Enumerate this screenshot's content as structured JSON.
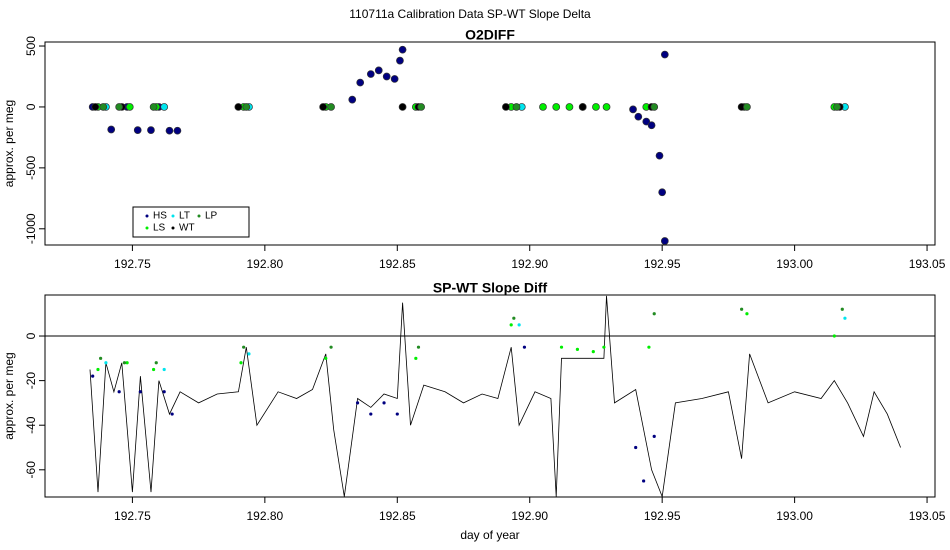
{
  "title": "110711a   Calibration Data SP-WT Slope Delta",
  "chart_data": [
    {
      "type": "scatter",
      "title": "O2DIFF",
      "y_label": "approx. per meg",
      "marker": "circle",
      "legend": "bottom-left",
      "xlim": [
        192.717,
        193.053
      ],
      "xticks": [
        {
          "value": 192.75,
          "label": "192.75"
        },
        {
          "value": 192.8,
          "label": "192.80"
        },
        {
          "value": 192.85,
          "label": "192.85"
        },
        {
          "value": 192.9,
          "label": "192.90"
        },
        {
          "value": 192.95,
          "label": "192.95"
        },
        {
          "value": 193,
          "label": "193.00"
        },
        {
          "value": 193.05,
          "label": "193.05"
        }
      ],
      "ylim": [
        -1133,
        533
      ],
      "yticks": [
        500,
        0,
        -500,
        -1000
      ],
      "series": [
        {
          "name": "HS",
          "color": "#000080",
          "mode": "points",
          "x": [
            192.735,
            192.742,
            192.748,
            192.752,
            192.757,
            192.76,
            192.764,
            192.767,
            192.833,
            192.836,
            192.84,
            192.843,
            192.846,
            192.849,
            192.851,
            192.852,
            192.939,
            192.941,
            192.944,
            192.946,
            192.949,
            192.95,
            192.951,
            192.951
          ],
          "values": [
            0,
            -185,
            0,
            -190,
            -190,
            0,
            -195,
            -195,
            60,
            200,
            270,
            300,
            250,
            230,
            380,
            470,
            -20,
            -80,
            -120,
            -150,
            -400,
            -700,
            430,
            -1100
          ]
        },
        {
          "name": "LS",
          "color": "#00ee00",
          "mode": "points",
          "x": [
            192.737,
            192.749,
            192.759,
            192.792,
            192.823,
            192.857,
            192.893,
            192.905,
            192.91,
            192.915,
            192.92,
            192.925,
            192.929,
            192.944,
            192.981,
            193.015
          ],
          "values": [
            0,
            0,
            0,
            0,
            0,
            0,
            0,
            0,
            0,
            0,
            0,
            0,
            0,
            0,
            0,
            0
          ]
        },
        {
          "name": "LT",
          "color": "#00e5ee",
          "mode": "points",
          "x": [
            192.74,
            192.762,
            192.794,
            192.897,
            193.019
          ],
          "values": [
            0,
            0,
            0,
            0,
            0
          ]
        },
        {
          "name": "WT",
          "color": "#000000",
          "mode": "points",
          "x": [
            192.736,
            192.746,
            192.79,
            192.822,
            192.852,
            192.858,
            192.891,
            192.92,
            192.946,
            192.98,
            193.017
          ],
          "values": [
            0,
            0,
            0,
            0,
            0,
            0,
            0,
            0,
            0,
            0,
            0
          ]
        },
        {
          "name": "LP",
          "color": "#228b22",
          "mode": "points",
          "x": [
            192.739,
            192.745,
            192.758,
            192.793,
            192.825,
            192.859,
            192.895,
            192.947,
            192.982,
            193.016
          ],
          "values": [
            0,
            0,
            0,
            0,
            0,
            0,
            0,
            0,
            0,
            0
          ]
        }
      ]
    },
    {
      "type": "scatter",
      "title": "SP-WT Slope Diff",
      "x_label": "day of year",
      "y_label": "approx. per meg",
      "marker": "dot",
      "hline": 0,
      "xlim": [
        192.717,
        193.053
      ],
      "xticks": [
        {
          "value": 192.75,
          "label": "192.75"
        },
        {
          "value": 192.8,
          "label": "192.80"
        },
        {
          "value": 192.85,
          "label": "192.85"
        },
        {
          "value": 192.9,
          "label": "192.90"
        },
        {
          "value": 192.95,
          "label": "192.95"
        },
        {
          "value": 193,
          "label": "193.00"
        },
        {
          "value": 193.05,
          "label": "193.05"
        }
      ],
      "ylim": [
        -72.2,
        18.4
      ],
      "yticks": [
        0,
        -20,
        -40,
        -60
      ],
      "series": [
        {
          "name": "WT",
          "color": "#000000",
          "mode": "line",
          "x": [
            192.734,
            192.737,
            192.74,
            192.743,
            192.746,
            192.75,
            192.753,
            192.757,
            192.76,
            192.764,
            192.768,
            192.775,
            192.782,
            192.79,
            192.793,
            192.797,
            192.805,
            192.812,
            192.818,
            192.823,
            192.826,
            192.83,
            192.835,
            192.84,
            192.845,
            192.85,
            192.852,
            192.855,
            192.86,
            192.868,
            192.875,
            192.882,
            192.888,
            192.893,
            192.896,
            192.902,
            192.908,
            192.91,
            192.912,
            192.928,
            192.929,
            192.932,
            192.94,
            192.946,
            192.95,
            192.955,
            192.965,
            192.975,
            192.98,
            192.983,
            192.99,
            193.0,
            193.01,
            193.015,
            193.02,
            193.026,
            193.03,
            193.035,
            193.04
          ],
          "values": [
            -15,
            -70,
            -12,
            -25,
            -12,
            -70,
            -18,
            -70,
            -20,
            -35,
            -25,
            -30,
            -26,
            -25,
            -5,
            -40,
            -25,
            -28,
            -24,
            -8,
            -42,
            -72,
            -28,
            -32,
            -26,
            -28,
            15,
            -40,
            -22,
            -25,
            -30,
            -26,
            -28,
            -5,
            -40,
            -25,
            -28,
            -72,
            -10,
            -10,
            18,
            -30,
            -24,
            -60,
            -72,
            -30,
            -28,
            -25,
            -55,
            -8,
            -30,
            -25,
            -28,
            -20,
            -30,
            -45,
            -25,
            -35,
            -50
          ]
        },
        {
          "name": "HS",
          "color": "#000080",
          "mode": "points",
          "x": [
            192.735,
            192.745,
            192.753,
            192.762,
            192.765,
            192.835,
            192.84,
            192.845,
            192.85,
            192.898,
            192.94,
            192.943,
            192.947
          ],
          "values": [
            -18,
            -25,
            -25,
            -25,
            -35,
            -30,
            -35,
            -30,
            -35,
            -5,
            -50,
            -65,
            -45
          ]
        },
        {
          "name": "LS",
          "color": "#00ee00",
          "mode": "points",
          "x": [
            192.737,
            192.748,
            192.758,
            192.791,
            192.823,
            192.857,
            192.893,
            192.912,
            192.918,
            192.924,
            192.928,
            192.945,
            192.982,
            193.015
          ],
          "values": [
            -15,
            -12,
            -15,
            -12,
            -10,
            -10,
            5,
            -5,
            -6,
            -7,
            -5,
            -5,
            10,
            0
          ]
        },
        {
          "name": "LT",
          "color": "#00e5ee",
          "mode": "points",
          "x": [
            192.74,
            192.762,
            192.794,
            192.896,
            193.019
          ],
          "values": [
            -12,
            -15,
            -8,
            5,
            8
          ]
        },
        {
          "name": "LP",
          "color": "#228b22",
          "mode": "points",
          "x": [
            192.738,
            192.747,
            192.759,
            192.792,
            192.825,
            192.858,
            192.894,
            192.947,
            192.98,
            193.018
          ],
          "values": [
            -10,
            -12,
            -12,
            -5,
            -5,
            -5,
            8,
            10,
            12,
            12
          ]
        }
      ]
    }
  ]
}
